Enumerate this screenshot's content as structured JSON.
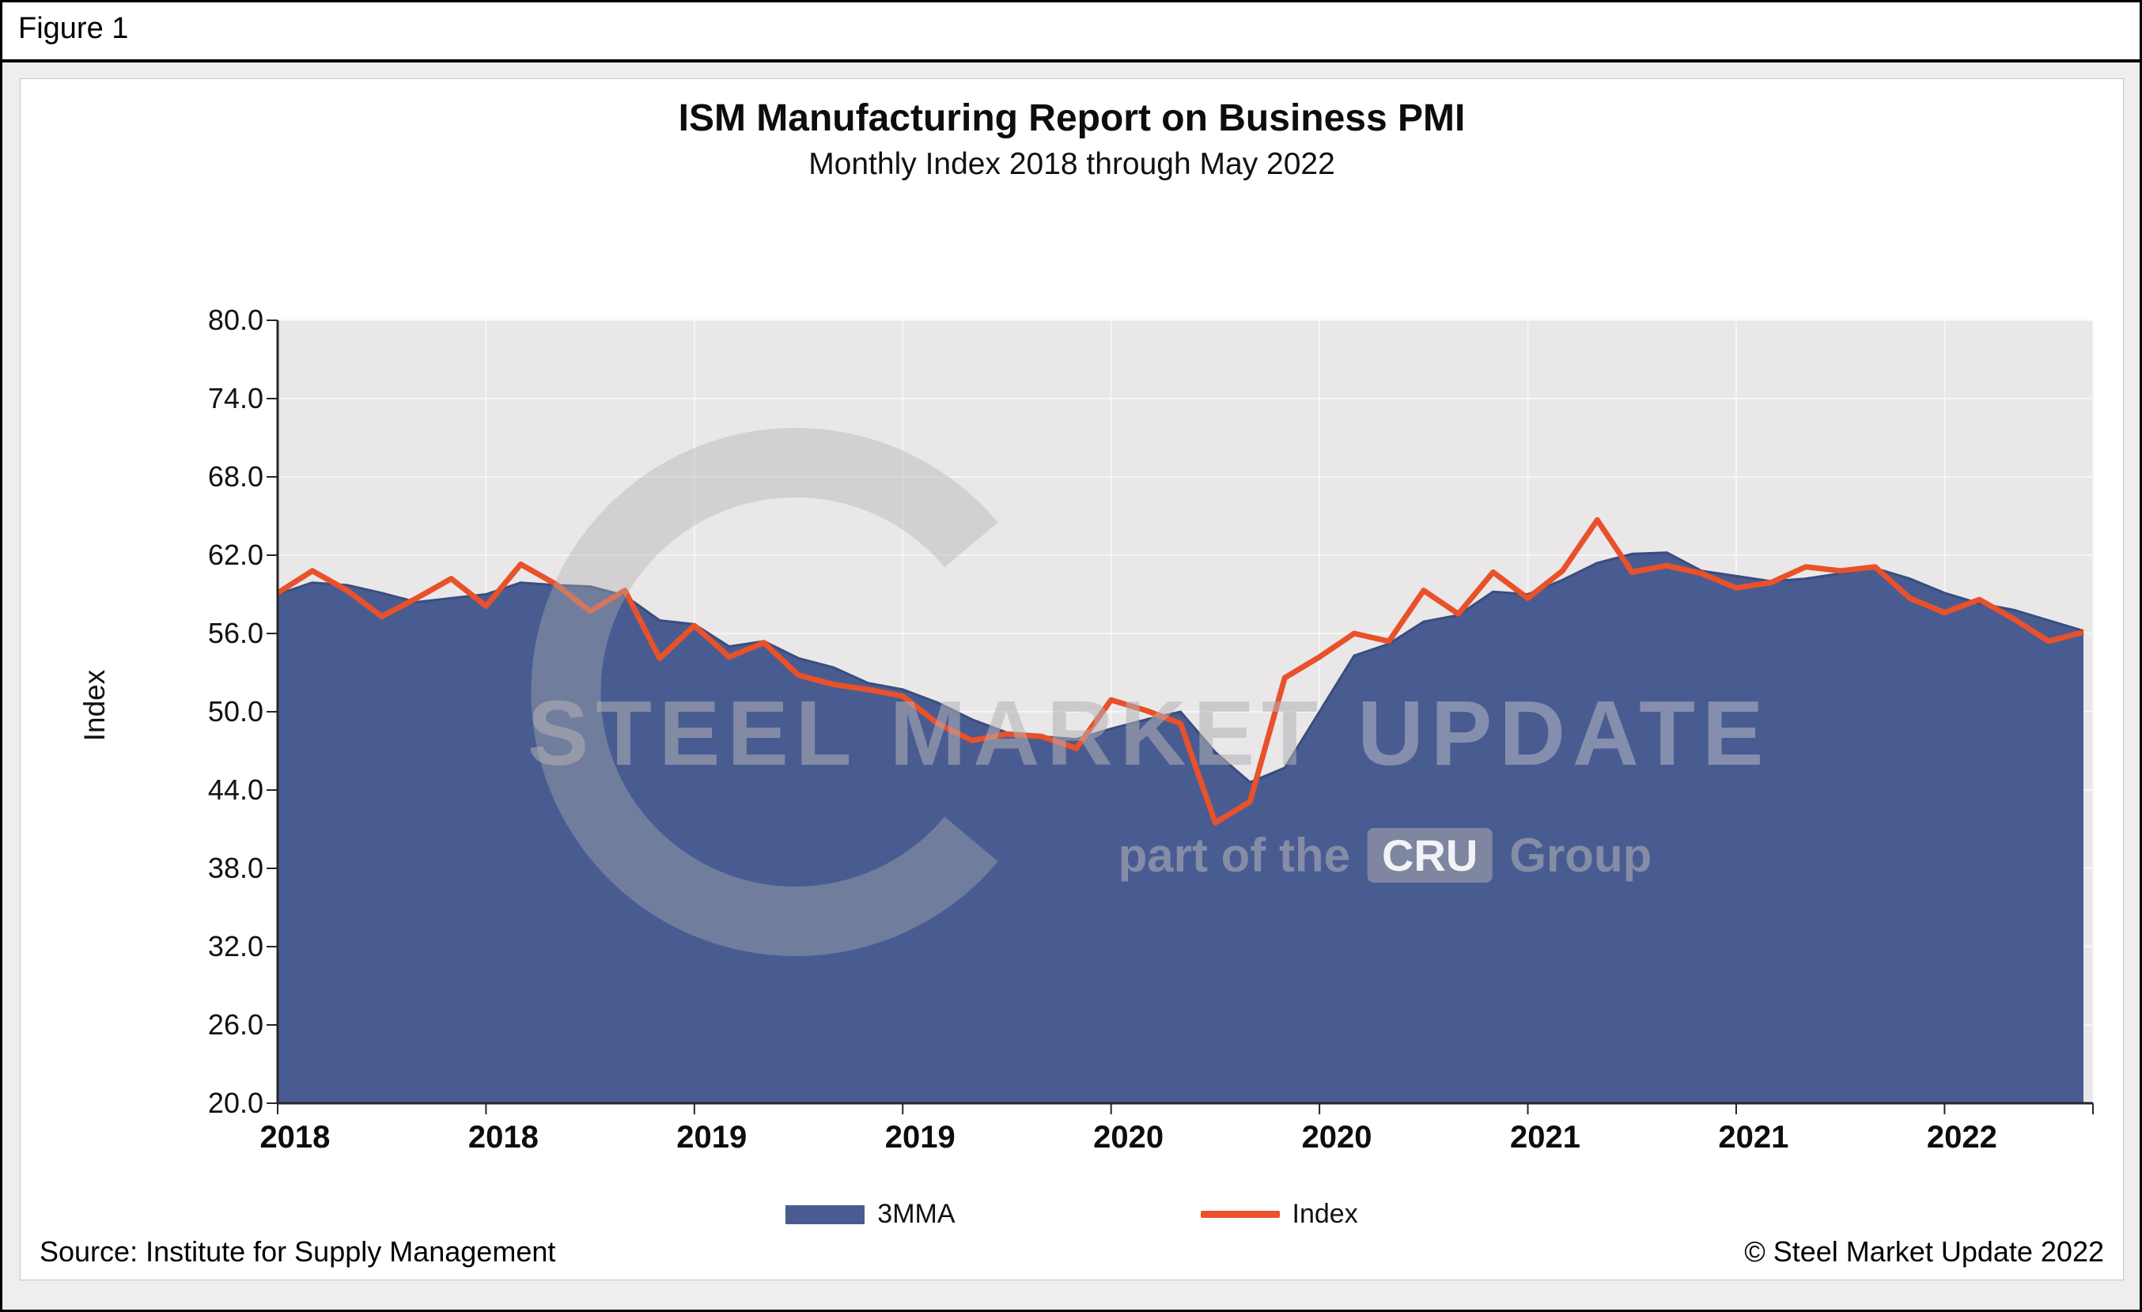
{
  "figure_label": "Figure 1",
  "title": "ISM Manufacturing Report on Business PMI",
  "subtitle": "Monthly Index 2018 through May 2022",
  "y_axis_title": "Index",
  "source": "Source: Institute for Supply Management",
  "copyright": "© Steel Market Update 2022",
  "legend": [
    {
      "label": "3MMA",
      "type": "area",
      "color": "#495c92"
    },
    {
      "label": "Index",
      "type": "line",
      "color": "#e8512a"
    }
  ],
  "watermark": {
    "line1_a": "STEEL MARKET",
    "line1_b": " UPDATE",
    "line2_pre": "part of the",
    "line2_box": "CRU",
    "line2_post": "Group"
  },
  "chart_data": {
    "type": "area+line",
    "title": "ISM Manufacturing Report on Business PMI",
    "subtitle": "Monthly Index 2018 through May 2022",
    "ylabel": "Index",
    "ylim": [
      20,
      80
    ],
    "y_ticks": [
      20,
      26,
      32,
      38,
      44,
      50,
      56,
      62,
      68,
      74,
      80
    ],
    "x_unit": "month",
    "x_start": "2018-01",
    "x_end": "2022-05",
    "x_tick_labels": [
      "2018",
      "2018",
      "2019",
      "2019",
      "2020",
      "2020",
      "2021",
      "2021",
      "2022"
    ],
    "x_tick_positions": [
      0,
      6,
      12,
      18,
      24,
      30,
      36,
      42,
      48
    ],
    "grid": true,
    "legend_position": "bottom",
    "plot_bg": "#e9e7e8",
    "grid_color": "#f6f5f5",
    "axis_color": "#262626",
    "series": [
      {
        "name": "3MMA",
        "type": "area",
        "color": "#495c92",
        "edge_color": "#3a4d7e",
        "values": [
          59.0,
          59.9,
          59.7,
          59.1,
          58.4,
          58.7,
          59.0,
          59.9,
          59.7,
          59.6,
          58.9,
          57.0,
          56.7,
          55.0,
          55.4,
          54.1,
          53.4,
          52.2,
          51.7,
          50.7,
          49.4,
          48.4,
          48.1,
          47.9,
          48.7,
          49.4,
          50.0,
          46.9,
          44.6,
          45.7,
          50.0,
          54.3,
          55.2,
          56.9,
          57.4,
          59.2,
          59.0,
          60.1,
          61.4,
          62.1,
          62.2,
          60.8,
          60.4,
          60.0,
          60.2,
          60.6,
          61.0,
          60.2,
          59.1,
          58.3,
          57.8,
          57.0,
          56.2
        ]
      },
      {
        "name": "Index",
        "type": "line",
        "color": "#e8512a",
        "values": [
          59.1,
          60.8,
          59.3,
          57.3,
          58.7,
          60.2,
          58.1,
          61.3,
          59.8,
          57.7,
          59.3,
          54.1,
          56.6,
          54.2,
          55.3,
          52.8,
          52.1,
          51.7,
          51.2,
          49.1,
          47.8,
          48.3,
          48.1,
          47.2,
          50.9,
          50.1,
          49.1,
          41.5,
          43.1,
          52.6,
          54.2,
          56.0,
          55.4,
          59.3,
          57.5,
          60.7,
          58.7,
          60.8,
          64.7,
          60.7,
          61.2,
          60.6,
          59.5,
          59.9,
          61.1,
          60.8,
          61.1,
          58.7,
          57.6,
          58.6,
          57.1,
          55.4,
          56.1
        ]
      }
    ]
  }
}
